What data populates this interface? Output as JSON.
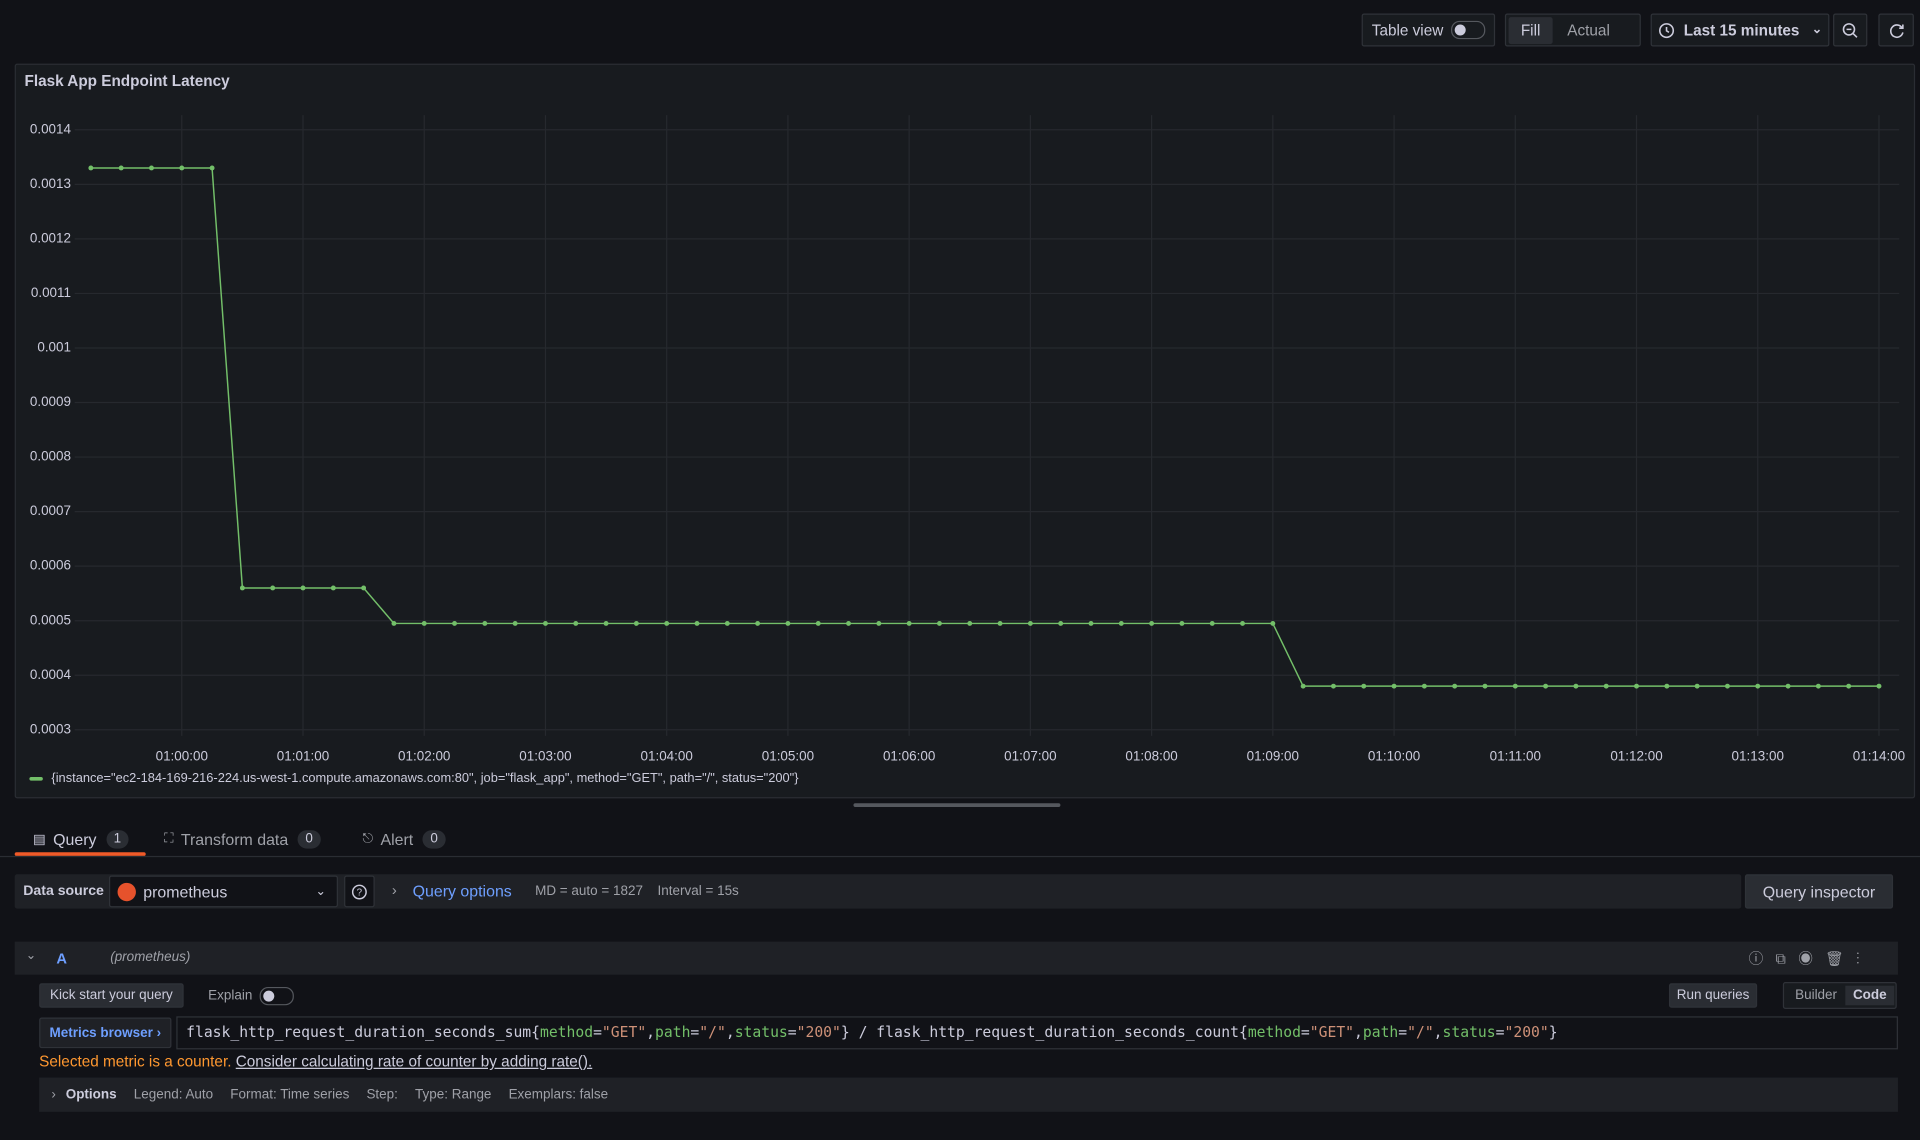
{
  "toolbar": {
    "table_view": "Table view",
    "fill": "Fill",
    "actual": "Actual",
    "time_range": "Last 15 minutes"
  },
  "chart_data": {
    "type": "line",
    "title": "Flask App Endpoint Latency",
    "x": [
      "00:59:15",
      "00:59:30",
      "00:59:45",
      "01:00:00",
      "01:00:15",
      "01:00:30",
      "01:00:45",
      "01:01:00",
      "01:01:15",
      "01:01:30",
      "01:01:45",
      "01:02:00",
      "01:02:15",
      "01:02:30",
      "01:02:45",
      "01:03:00",
      "01:03:15",
      "01:03:30",
      "01:03:45",
      "01:04:00",
      "01:04:15",
      "01:04:30",
      "01:04:45",
      "01:05:00",
      "01:05:15",
      "01:05:30",
      "01:05:45",
      "01:06:00",
      "01:06:15",
      "01:06:30",
      "01:06:45",
      "01:07:00",
      "01:07:15",
      "01:07:30",
      "01:07:45",
      "01:08:00",
      "01:08:15",
      "01:08:30",
      "01:08:45",
      "01:09:00",
      "01:09:15",
      "01:09:30",
      "01:09:45",
      "01:10:00",
      "01:10:15",
      "01:10:30",
      "01:10:45",
      "01:11:00",
      "01:11:15",
      "01:11:30",
      "01:11:45",
      "01:12:00",
      "01:12:15",
      "01:12:30",
      "01:12:45",
      "01:13:00",
      "01:13:15",
      "01:13:30",
      "01:13:45",
      "01:14:00"
    ],
    "series": [
      {
        "name": "{instance=\"ec2-184-169-216-224.us-west-1.compute.amazonaws.com:80\", job=\"flask_app\", method=\"GET\", path=\"/\", status=\"200\"}",
        "color": "#73bf69",
        "values": [
          0.00133,
          0.00133,
          0.00133,
          0.00133,
          0.00133,
          0.00056,
          0.00056,
          0.00056,
          0.00056,
          0.00056,
          0.000495,
          0.000495,
          0.000495,
          0.000495,
          0.000495,
          0.000495,
          0.000495,
          0.000495,
          0.000495,
          0.000495,
          0.000495,
          0.000495,
          0.000495,
          0.000495,
          0.000495,
          0.000495,
          0.000495,
          0.000495,
          0.000495,
          0.000495,
          0.000495,
          0.000495,
          0.000495,
          0.000495,
          0.000495,
          0.000495,
          0.000495,
          0.000495,
          0.000495,
          0.000495,
          0.00038,
          0.00038,
          0.00038,
          0.00038,
          0.00038,
          0.00038,
          0.00038,
          0.00038,
          0.00038,
          0.00038,
          0.00038,
          0.00038,
          0.00038,
          0.00038,
          0.00038,
          0.00038,
          0.00038,
          0.00038,
          0.00038,
          0.00038
        ]
      }
    ],
    "xlim": [
      "00:59:07",
      "01:14:10"
    ],
    "xticks": [
      "01:00:00",
      "01:01:00",
      "01:02:00",
      "01:03:00",
      "01:04:00",
      "01:05:00",
      "01:06:00",
      "01:07:00",
      "01:08:00",
      "01:09:00",
      "01:10:00",
      "01:11:00",
      "01:12:00",
      "01:13:00",
      "01:14:00"
    ],
    "ylim": [
      0.0003,
      0.0014
    ],
    "yticks": [
      0.0003,
      0.0004,
      0.0005,
      0.0006,
      0.0007,
      0.0008,
      0.0009,
      0.001,
      0.0011,
      0.0012,
      0.0013,
      0.0014
    ],
    "grid": true
  },
  "tabs": [
    {
      "label": "Query",
      "count": "1"
    },
    {
      "label": "Transform data",
      "count": "0"
    },
    {
      "label": "Alert",
      "count": "0"
    }
  ],
  "datasource": {
    "label": "Data source",
    "name": "prometheus",
    "query_options": "Query options",
    "md": "MD = auto = 1827",
    "interval": "Interval = 15s",
    "inspector": "Query inspector"
  },
  "query": {
    "ref": "A",
    "source": "(prometheus)",
    "kick_start": "Kick start your query",
    "explain": "Explain",
    "run": "Run queries",
    "builder": "Builder",
    "code": "Code",
    "metrics_browser": "Metrics browser",
    "parts": [
      "flask_http_request_duration_seconds_sum{",
      "method",
      "=",
      "\"GET\"",
      ",",
      "path",
      "=",
      "\"/\"",
      ",",
      "status",
      "=",
      "\"200\"",
      "} / flask_http_request_duration_seconds_count{",
      "method",
      "=",
      "\"GET\"",
      ",",
      "path",
      "=",
      "\"/\"",
      ",",
      "status",
      "=",
      "\"200\"",
      "}"
    ],
    "warning": "Selected metric is a counter.",
    "hint": "Consider calculating rate of counter by adding rate().",
    "options": {
      "label": "Options",
      "legend": "Legend: Auto",
      "format": "Format: Time series",
      "step": "Step:",
      "type": "Type: Range",
      "exemplars": "Exemplars: false"
    }
  }
}
